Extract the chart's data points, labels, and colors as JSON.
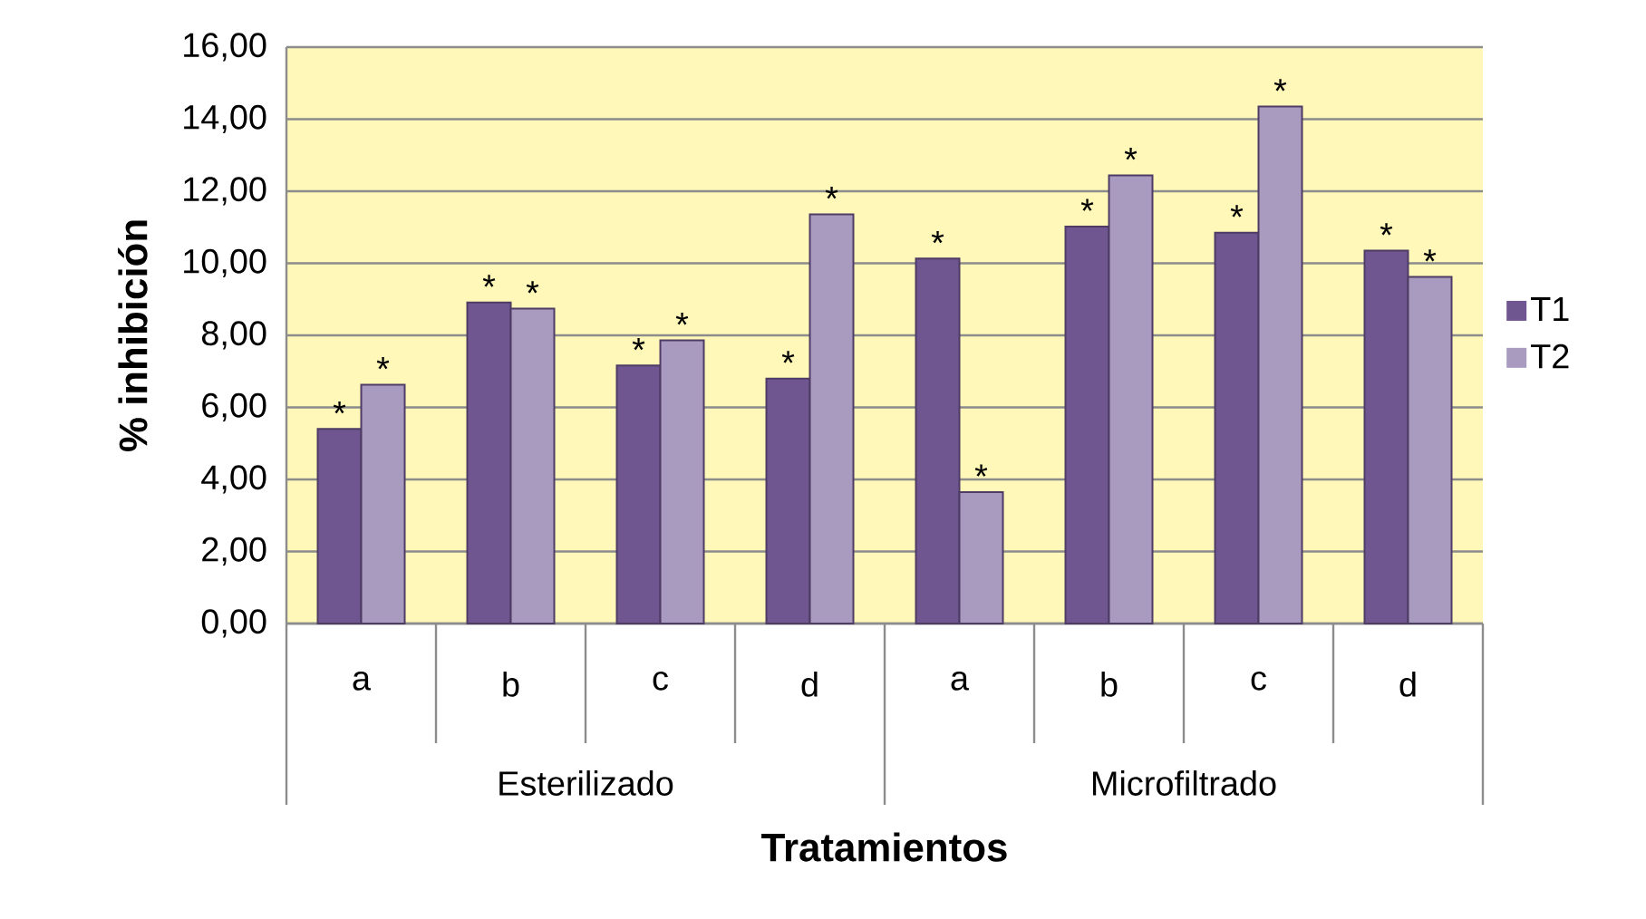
{
  "chart_data": {
    "type": "bar",
    "xlabel": "Tratamientos",
    "ylabel": "% inhibición",
    "categories": [
      "a",
      "b",
      "c",
      "d",
      "a",
      "b",
      "c",
      "d"
    ],
    "series": [
      {
        "name": "T1",
        "color": "#6f5690",
        "values": [
          5.4,
          8.91,
          7.16,
          6.8,
          10.13,
          11.02,
          10.85,
          10.35
        ]
      },
      {
        "name": "T2",
        "color": "#a99bbf",
        "values": [
          6.63,
          8.74,
          7.86,
          11.36,
          3.65,
          12.44,
          14.35,
          9.62
        ]
      }
    ],
    "ylim": [
      0,
      16
    ],
    "yticks": [
      {
        "value": 0,
        "label": "0,00"
      },
      {
        "value": 2,
        "label": "2,00"
      },
      {
        "value": 4,
        "label": "4,00"
      },
      {
        "value": 6,
        "label": "6,00"
      },
      {
        "value": 8,
        "label": "8,00"
      },
      {
        "value": 10,
        "label": "10,00"
      },
      {
        "value": 12,
        "label": "12,00"
      },
      {
        "value": 14,
        "label": "14,00"
      },
      {
        "value": 16,
        "label": "16,00"
      }
    ],
    "grid": "y",
    "legend": "right",
    "annotations": [
      "Esterilizado",
      "Microfiltrado",
      "*",
      "*",
      "*",
      "*",
      "*",
      "*",
      "*",
      "*",
      "*",
      "*",
      "*",
      "*",
      "*",
      "*",
      "*",
      "*"
    ]
  }
}
